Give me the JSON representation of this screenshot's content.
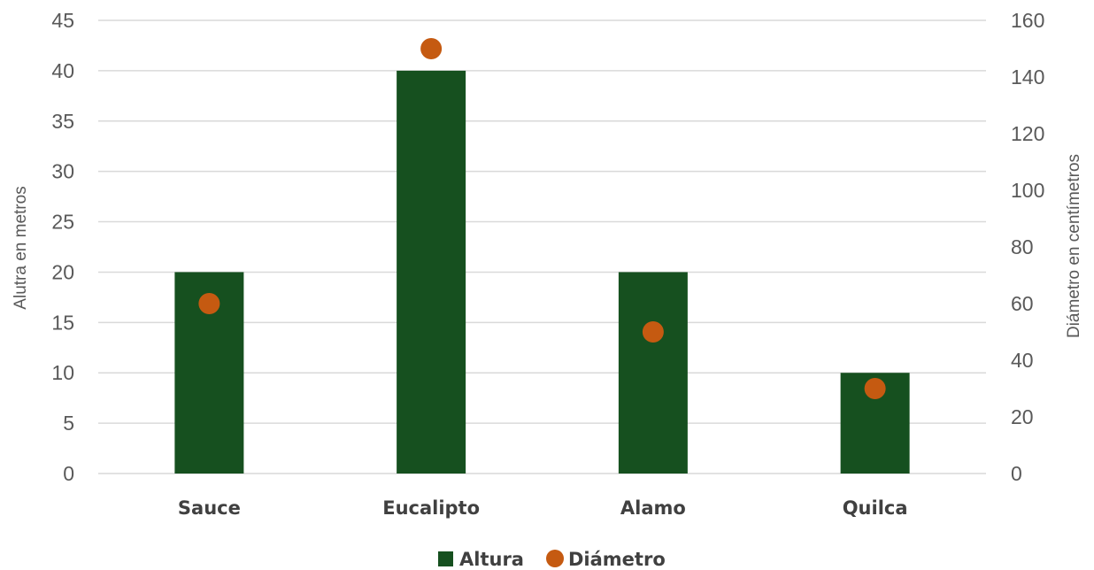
{
  "chart_data": {
    "type": "bar",
    "categories": [
      "Sauce",
      "Eucalipto",
      "Alamo",
      "Quilca"
    ],
    "series": [
      {
        "name": "Altura",
        "type": "bar",
        "axis": "left",
        "values": [
          20,
          40,
          20,
          10
        ],
        "color": "#16501f"
      },
      {
        "name": "Diámetro",
        "type": "scatter",
        "axis": "right",
        "values": [
          60,
          150,
          50,
          30
        ],
        "color": "#c55a11"
      }
    ],
    "ylabel": "Alutra en metros",
    "ylabel_right": "Diámetro en centímetros",
    "ylim": [
      0,
      45
    ],
    "ylim_right": [
      0,
      160
    ],
    "yticks": [
      0,
      5,
      10,
      15,
      20,
      25,
      30,
      35,
      40,
      45
    ],
    "yticks_right": [
      0,
      20,
      40,
      60,
      80,
      100,
      120,
      140,
      160
    ],
    "grid": true,
    "legend": {
      "position": "bottom",
      "entries": [
        "Altura",
        "Diámetro"
      ]
    }
  }
}
